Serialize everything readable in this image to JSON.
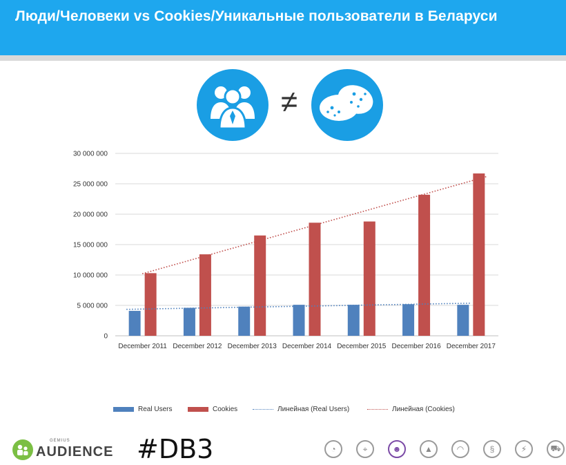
{
  "header": {
    "title": "Люди/Человеки vs Cookies/Уникальные пользователи в Беларуси"
  },
  "hero": {
    "left_icon": "people-group-icon",
    "right_icon": "cookie-icon",
    "symbol": "≠",
    "circle_color": "#1a9ee4"
  },
  "chart_data": {
    "type": "bar",
    "categories": [
      "December 2011",
      "December 2012",
      "December 2013",
      "December 2014",
      "December 2015",
      "December 2016",
      "December 2017"
    ],
    "series": [
      {
        "name": "Real Users",
        "color": "#4f81bd",
        "values": [
          4100000,
          4600000,
          4800000,
          5100000,
          5100000,
          5200000,
          5100000
        ]
      },
      {
        "name": "Cookies",
        "color": "#c0504d",
        "values": [
          10300000,
          13400000,
          16500000,
          18600000,
          18800000,
          23200000,
          26700000
        ]
      }
    ],
    "trendlines": [
      {
        "name": "Линейная (Real Users)",
        "series": "Real Users",
        "type": "linear",
        "style": "dotted",
        "color": "#4f81bd"
      },
      {
        "name": "Линейная (Cookies)",
        "series": "Cookies",
        "type": "linear",
        "style": "dotted",
        "color": "#c0504d"
      }
    ],
    "ylim": [
      0,
      30000000
    ],
    "yticks": [
      0,
      5000000,
      10000000,
      15000000,
      20000000,
      25000000,
      30000000
    ],
    "ytick_labels": [
      "0",
      "5 000 000",
      "10 000 000",
      "15 000 000",
      "20 000 000",
      "25 000 000",
      "30 000 000"
    ],
    "grid": true,
    "legend": "bottom",
    "title": "",
    "xlabel": "",
    "ylabel": ""
  },
  "footer": {
    "logo_small": "GEMIUS",
    "logo_text": "AUDIENCE",
    "hashtag": "#DB3",
    "nav_icons": [
      {
        "name": "browser-icon",
        "glyph": "◔"
      },
      {
        "name": "location-pin-icon",
        "glyph": "⌖"
      },
      {
        "name": "users-icon",
        "glyph": "☻"
      },
      {
        "name": "mountain-icon",
        "glyph": "▲"
      },
      {
        "name": "signal-icon",
        "glyph": "◠"
      },
      {
        "name": "flame-icon",
        "glyph": "§"
      },
      {
        "name": "lightning-icon",
        "glyph": "⚡"
      },
      {
        "name": "cart-icon",
        "glyph": "⛟"
      }
    ],
    "active_nav_index": 2
  }
}
